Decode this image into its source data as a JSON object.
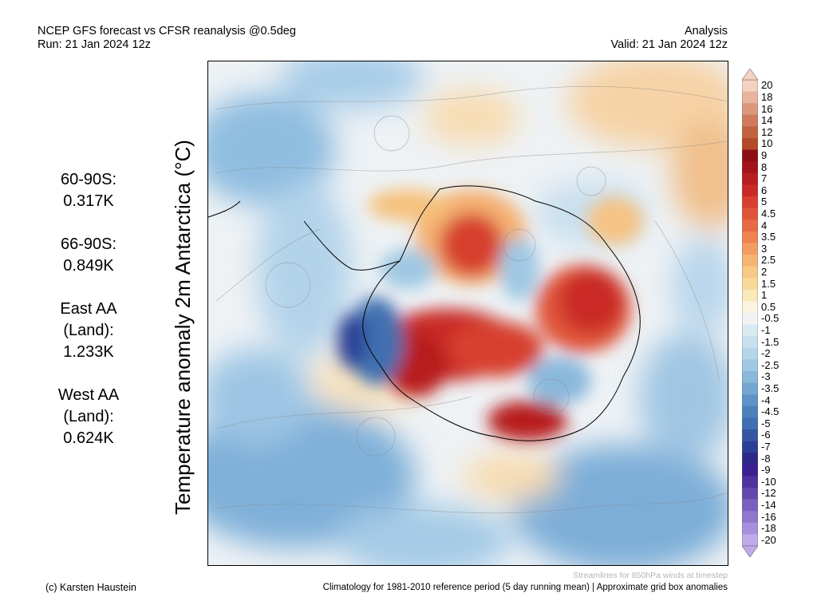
{
  "header": {
    "title": "NCEP GFS forecast vs CFSR reanalysis @0.5deg",
    "run": "Run: 21 Jan 2024 12z",
    "analysis": "Analysis",
    "valid": "Valid: 21 Jan 2024 12z"
  },
  "stats": [
    {
      "label": "60-90S:",
      "value": "0.317K"
    },
    {
      "label": "66-90S:",
      "value": "0.849K"
    },
    {
      "label": "East AA (Land):",
      "value": "1.233K"
    },
    {
      "label": "West AA (Land):",
      "value": "0.624K"
    }
  ],
  "map": {
    "ylabel": "Temperature anomaly 2m Antarctica (°C)"
  },
  "colorbar": {
    "labels": [
      "20",
      "18",
      "16",
      "14",
      "12",
      "10",
      "9",
      "8",
      "7",
      "6",
      "5",
      "4.5",
      "4",
      "3.5",
      "3",
      "2.5",
      "2",
      "1.5",
      "1",
      "0.5",
      "-0.5",
      "-1",
      "-1.5",
      "-2",
      "-2.5",
      "-3",
      "-3.5",
      "-4",
      "-4.5",
      "-5",
      "-6",
      "-7",
      "-8",
      "-9",
      "-10",
      "-12",
      "-14",
      "-16",
      "-18",
      "-20"
    ],
    "colors": [
      "#f3d2c2",
      "#e8b49e",
      "#dc987b",
      "#cf7c5c",
      "#c2633f",
      "#b34a28",
      "#8c0f14",
      "#a3141a",
      "#b81d1f",
      "#c92a26",
      "#d7402f",
      "#e0553a",
      "#e86a45",
      "#ee8352",
      "#f29c62",
      "#f5b474",
      "#f7c886",
      "#f8d99a",
      "#f9e8b8",
      "#fbf4e0",
      "#f2f2f2",
      "#dbe9f3",
      "#c9e0ef",
      "#b5d5ea",
      "#9fc8e3",
      "#89b8db",
      "#73a7d1",
      "#5d93c6",
      "#4c81bb",
      "#3f6fb0",
      "#3557a3",
      "#2c3f95",
      "#2b2a87",
      "#3a2090",
      "#51329e",
      "#6548ae",
      "#7a5fbe",
      "#9176cd",
      "#a88edc",
      "#c1aaea"
    ]
  },
  "footer": {
    "streamlines": "Streamlines for 850hPa winds at timestep",
    "credit": "(c) Karsten Haustein",
    "climatology": "Climatology for 1981-2010 reference period (5 day running mean) | Approximate grid box anomalies"
  }
}
